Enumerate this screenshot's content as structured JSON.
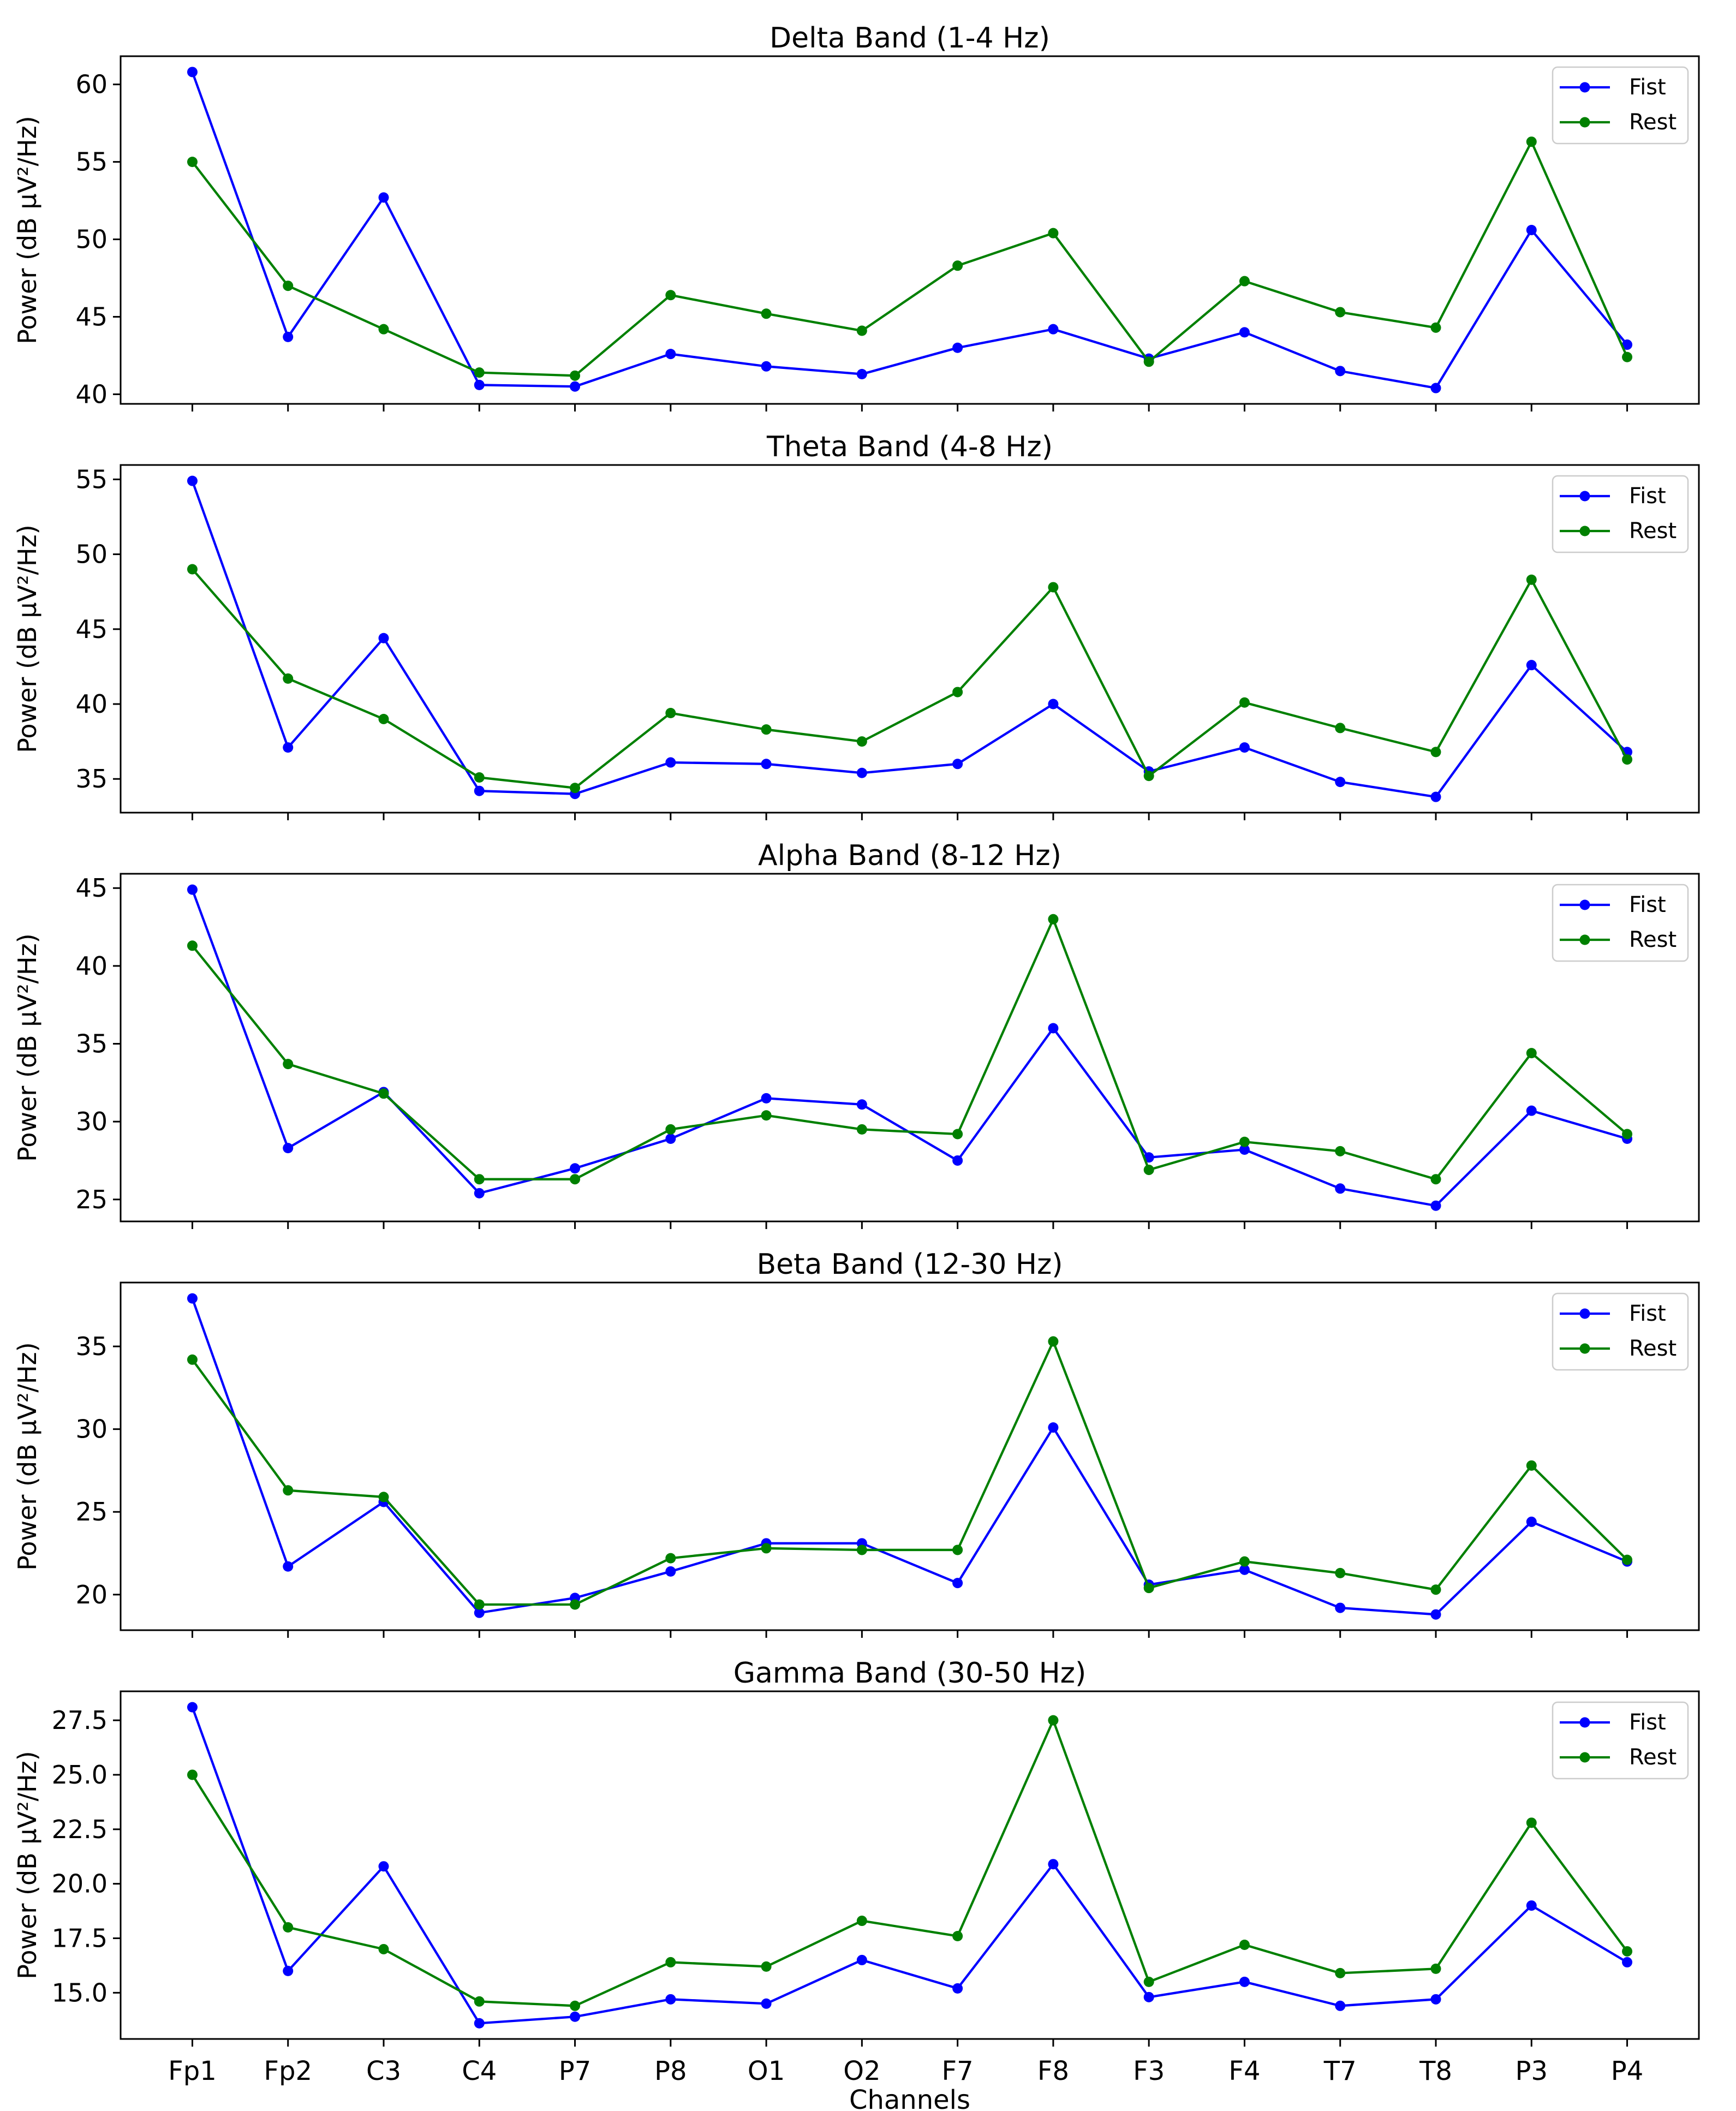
{
  "figure": {
    "xlabel": "Channels",
    "ylabel": "Power (dB μV²/Hz)",
    "legend_labels": [
      "Fist",
      "Rest"
    ],
    "colors": {
      "fist": "#0000ff",
      "rest": "#008000",
      "spine": "#000000",
      "legend_border": "#cccccc"
    }
  },
  "chart_data": [
    {
      "type": "line",
      "title": "Delta Band (1-4 Hz)",
      "categories": [
        "Fp1",
        "Fp2",
        "C3",
        "C4",
        "P7",
        "P8",
        "O1",
        "O2",
        "F7",
        "F8",
        "F3",
        "F4",
        "T7",
        "T8",
        "P3",
        "P4"
      ],
      "xlabel": "Channels",
      "ylabel": "Power (dB μV²/Hz)",
      "yticks": [
        40,
        45,
        50,
        55,
        60
      ],
      "ytick_labels": [
        "40",
        "45",
        "50",
        "55",
        "60"
      ],
      "ylim": [
        39.38,
        61.82
      ],
      "grid": false,
      "legend_position": "upper right",
      "series": [
        {
          "name": "Fist",
          "color": "#0000ff",
          "values": [
            60.8,
            43.7,
            52.7,
            40.6,
            40.5,
            42.6,
            41.8,
            41.3,
            43.0,
            44.2,
            42.3,
            44.0,
            41.5,
            40.4,
            50.6,
            43.2
          ]
        },
        {
          "name": "Rest",
          "color": "#008000",
          "values": [
            55.0,
            47.0,
            44.2,
            41.4,
            41.2,
            46.4,
            45.2,
            44.1,
            48.3,
            50.4,
            42.1,
            47.3,
            45.3,
            44.3,
            56.3,
            42.4
          ]
        }
      ]
    },
    {
      "type": "line",
      "title": "Theta Band (4-8 Hz)",
      "categories": [
        "Fp1",
        "Fp2",
        "C3",
        "C4",
        "P7",
        "P8",
        "O1",
        "O2",
        "F7",
        "F8",
        "F3",
        "F4",
        "T7",
        "T8",
        "P3",
        "P4"
      ],
      "xlabel": "Channels",
      "ylabel": "Power (dB μV²/Hz)",
      "yticks": [
        35,
        40,
        45,
        50,
        55
      ],
      "ytick_labels": [
        "35",
        "40",
        "45",
        "50",
        "55"
      ],
      "ylim": [
        32.75,
        55.96
      ],
      "grid": false,
      "legend_position": "upper right",
      "series": [
        {
          "name": "Fist",
          "color": "#0000ff",
          "values": [
            54.9,
            37.1,
            44.4,
            34.2,
            34.0,
            36.1,
            36.0,
            35.4,
            36.0,
            40.0,
            35.5,
            37.1,
            34.8,
            33.8,
            42.6,
            36.8
          ]
        },
        {
          "name": "Rest",
          "color": "#008000",
          "values": [
            49.0,
            41.7,
            39.0,
            35.1,
            34.4,
            39.4,
            38.3,
            37.5,
            40.8,
            47.8,
            35.2,
            40.1,
            38.4,
            36.8,
            48.3,
            36.3
          ]
        }
      ]
    },
    {
      "type": "line",
      "title": "Alpha Band (8-12 Hz)",
      "categories": [
        "Fp1",
        "Fp2",
        "C3",
        "C4",
        "P7",
        "P8",
        "O1",
        "O2",
        "F7",
        "F8",
        "F3",
        "F4",
        "T7",
        "T8",
        "P3",
        "P4"
      ],
      "xlabel": "Channels",
      "ylabel": "Power (dB μV²/Hz)",
      "yticks": [
        25,
        30,
        35,
        40,
        45
      ],
      "ytick_labels": [
        "25",
        "30",
        "35",
        "40",
        "45"
      ],
      "ylim": [
        23.59,
        45.92
      ],
      "grid": false,
      "legend_position": "upper right",
      "series": [
        {
          "name": "Fist",
          "color": "#0000ff",
          "values": [
            44.9,
            28.3,
            31.9,
            25.4,
            27.0,
            28.9,
            31.5,
            31.1,
            27.5,
            36.0,
            27.7,
            28.2,
            25.7,
            24.6,
            30.7,
            28.9
          ]
        },
        {
          "name": "Rest",
          "color": "#008000",
          "values": [
            41.3,
            33.7,
            31.8,
            26.3,
            26.3,
            29.5,
            30.4,
            29.5,
            29.2,
            43.0,
            26.9,
            28.7,
            28.1,
            26.3,
            34.4,
            29.2
          ]
        }
      ]
    },
    {
      "type": "line",
      "title": "Beta Band (12-30 Hz)",
      "categories": [
        "Fp1",
        "Fp2",
        "C3",
        "C4",
        "P7",
        "P8",
        "O1",
        "O2",
        "F7",
        "F8",
        "F3",
        "F4",
        "T7",
        "T8",
        "P3",
        "P4"
      ],
      "xlabel": "Channels",
      "ylabel": "Power (dB μV²/Hz)",
      "yticks": [
        20,
        25,
        30,
        35
      ],
      "ytick_labels": [
        "20",
        "25",
        "30",
        "35"
      ],
      "ylim": [
        17.85,
        38.86
      ],
      "grid": false,
      "legend_position": "upper right",
      "series": [
        {
          "name": "Fist",
          "color": "#0000ff",
          "values": [
            37.9,
            21.7,
            25.6,
            18.9,
            19.8,
            21.4,
            23.1,
            23.1,
            20.7,
            30.1,
            20.6,
            21.5,
            19.2,
            18.8,
            24.4,
            22.0
          ]
        },
        {
          "name": "Rest",
          "color": "#008000",
          "values": [
            34.2,
            26.3,
            25.9,
            19.4,
            19.4,
            22.2,
            22.8,
            22.7,
            22.7,
            35.3,
            20.4,
            22.0,
            21.3,
            20.3,
            27.8,
            22.1
          ]
        }
      ]
    },
    {
      "type": "line",
      "title": "Gamma Band (30-50 Hz)",
      "categories": [
        "Fp1",
        "Fp2",
        "C3",
        "C4",
        "P7",
        "P8",
        "O1",
        "O2",
        "F7",
        "F8",
        "F3",
        "F4",
        "T7",
        "T8",
        "P3",
        "P4"
      ],
      "xlabel": "Channels",
      "ylabel": "Power (dB μV²/Hz)",
      "yticks": [
        15.0,
        17.5,
        20.0,
        22.5,
        25.0,
        27.5
      ],
      "ytick_labels": [
        "15.0",
        "17.5",
        "20.0",
        "22.5",
        "25.0",
        "27.5"
      ],
      "ylim": [
        12.88,
        28.83
      ],
      "grid": false,
      "legend_position": "upper right",
      "series": [
        {
          "name": "Fist",
          "color": "#0000ff",
          "values": [
            28.1,
            16.0,
            20.8,
            13.6,
            13.9,
            14.7,
            14.5,
            16.5,
            15.2,
            20.9,
            14.8,
            15.5,
            14.4,
            14.7,
            19.0,
            16.4
          ]
        },
        {
          "name": "Rest",
          "color": "#008000",
          "values": [
            25.0,
            18.0,
            17.0,
            14.6,
            14.4,
            16.4,
            16.2,
            18.3,
            17.6,
            27.5,
            15.5,
            17.2,
            15.9,
            16.1,
            22.8,
            16.9
          ]
        }
      ]
    }
  ]
}
